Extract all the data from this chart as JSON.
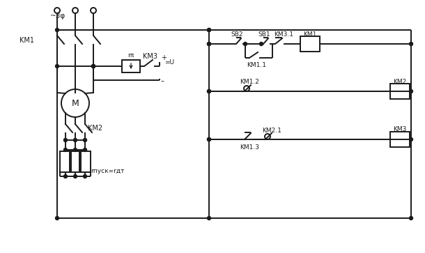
{
  "bg_color": "#ffffff",
  "line_color": "#1a1a1a",
  "lw": 1.4,
  "figsize": [
    6.1,
    3.63
  ],
  "dpi": 100,
  "labels": {
    "three_phase": "~3φ",
    "KM1_main": "KM1",
    "KM2_rotor": "KM2",
    "r_p": "rπ",
    "KM3_sw": "KM3",
    "eq_U": "=U",
    "r_pusk": "rпуск=rдт",
    "SB2": "SB2",
    "SB1": "SB1",
    "KM1_1": "KM1.1",
    "KM3_1": "KM3.1",
    "KM1_2": "KM1.2",
    "KM1_3": "KM1.3",
    "KM2_1": "KM2.1",
    "KM1_coil": "KM1",
    "KM2_coil": "KM2",
    "KM3_coil": "KM3",
    "M": "M"
  }
}
